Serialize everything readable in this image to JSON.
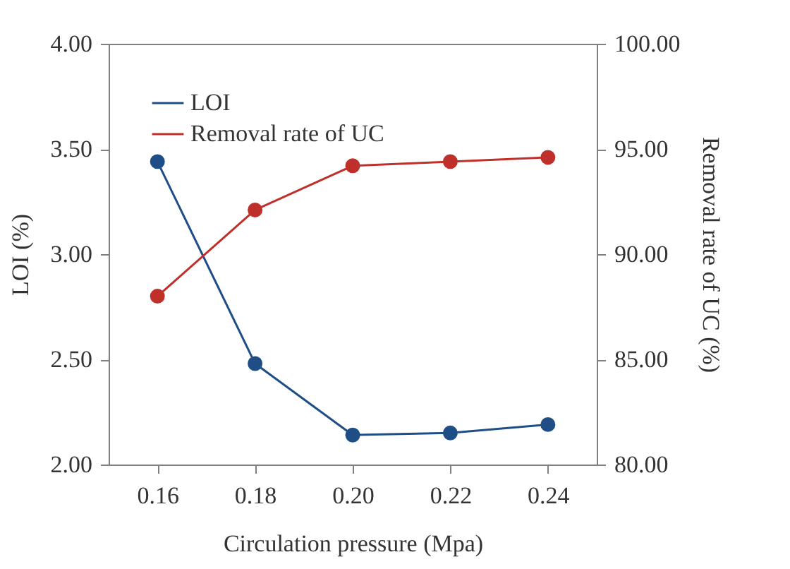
{
  "chart_data": {
    "type": "line",
    "xlabel": "Circulation pressure (Mpa)",
    "ylabel": "LOI (%)",
    "y2label": "Removal rate of UC (%)",
    "categories": [
      "0.16",
      "0.18",
      "0.20",
      "0.22",
      "0.24"
    ],
    "series": [
      {
        "name": "LOI",
        "color": "#1f4e87",
        "values": [
          3.44,
          2.48,
          2.14,
          2.15,
          2.19
        ]
      },
      {
        "name": "Removal rate of UC",
        "color": "#c0302a",
        "axis": "y2",
        "values": [
          88.0,
          92.1,
          94.2,
          94.4,
          94.6
        ]
      }
    ],
    "ylim": [
      2,
      4
    ],
    "yticks": [
      {
        "value": 2,
        "label": "2.00"
      },
      {
        "value": 2.5,
        "label": "2.50"
      },
      {
        "value": 3,
        "label": "3.00"
      },
      {
        "value": 3.5,
        "label": "3.50"
      },
      {
        "value": 4,
        "label": "4.00"
      }
    ],
    "y2lim": [
      80,
      100
    ],
    "y2ticks": [
      {
        "value": 80,
        "label": "80.00"
      },
      {
        "value": 85,
        "label": "85.00"
      },
      {
        "value": 90,
        "label": "90.00"
      },
      {
        "value": 95,
        "label": "95.00"
      },
      {
        "value": 100,
        "label": "100.00"
      }
    ],
    "legend": "top left",
    "marker": "circle",
    "line_style": "solid",
    "grid": false
  }
}
